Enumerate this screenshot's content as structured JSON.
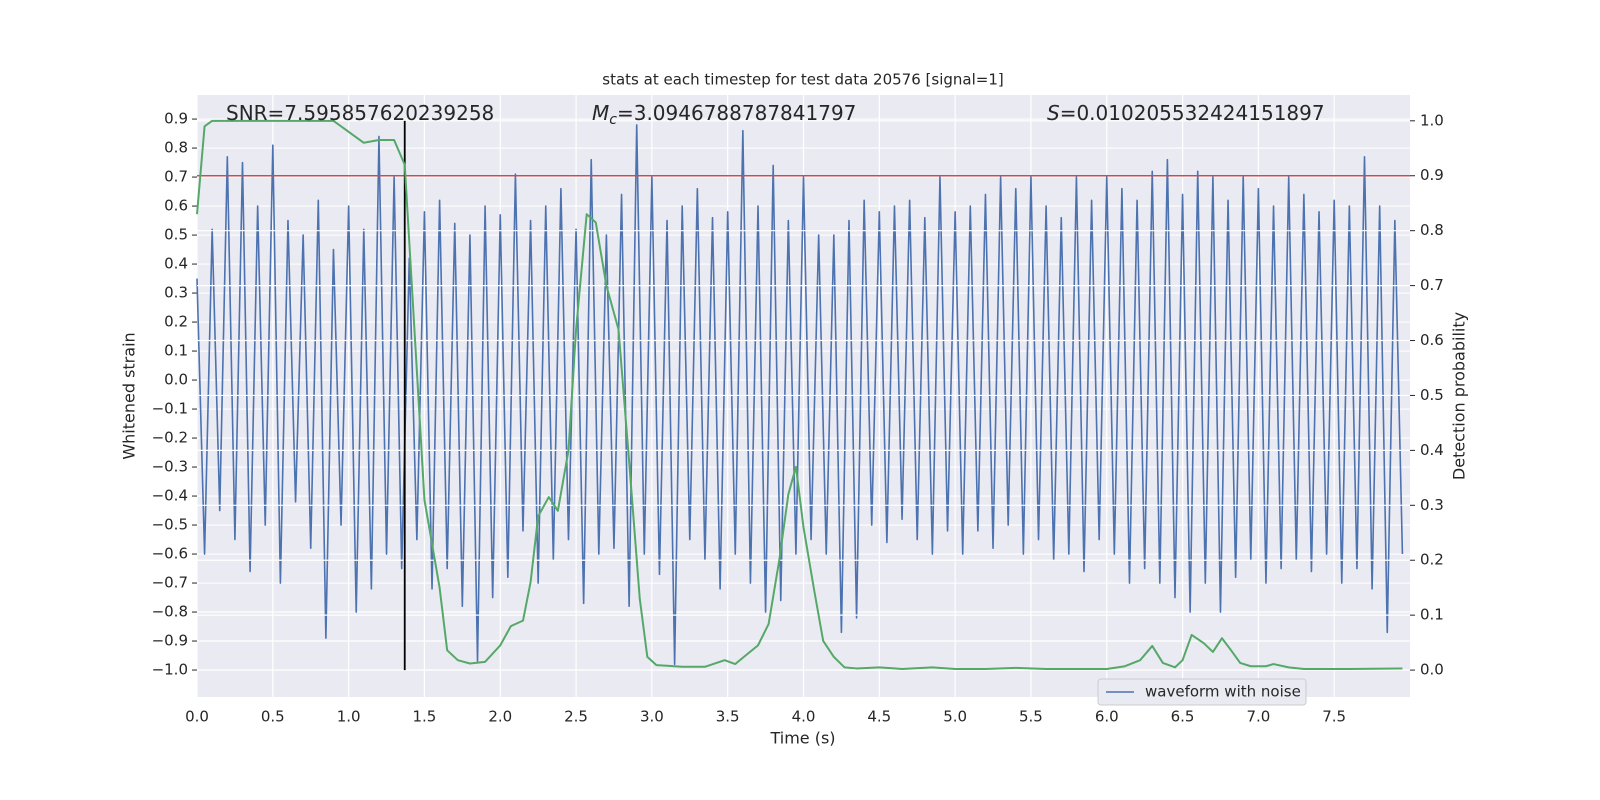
{
  "chart_data": {
    "type": "line",
    "title": "stats at each timestep for test data 20576 [signal=1]",
    "xlabel": "Time (s)",
    "ylabel": "Whitened strain",
    "y2label": "Detection probability",
    "annotations": [
      {
        "text": "SNR=7.595857620239258"
      },
      {
        "symbol": "M",
        "subscript": "c",
        "text": "=3.0946788787841797"
      },
      {
        "symbol": "S",
        "text": "=0.010205532424151897"
      }
    ],
    "xlim": [
      0,
      8.0
    ],
    "ylim": [
      -1.093,
      0.983
    ],
    "y2lim": [
      -0.049,
      1.047
    ],
    "xticks": [
      {
        "value": 0,
        "label": "0.0"
      },
      {
        "value": 0.5,
        "label": "0.5"
      },
      {
        "value": 1,
        "label": "1.0"
      },
      {
        "value": 1.5,
        "label": "1.5"
      },
      {
        "value": 2,
        "label": "2.0"
      },
      {
        "value": 2.5,
        "label": "2.5"
      },
      {
        "value": 3,
        "label": "3.0"
      },
      {
        "value": 3.5,
        "label": "3.5"
      },
      {
        "value": 4,
        "label": "4.0"
      },
      {
        "value": 4.5,
        "label": "4.5"
      },
      {
        "value": 5,
        "label": "5.0"
      },
      {
        "value": 5.5,
        "label": "5.5"
      },
      {
        "value": 6,
        "label": "6.0"
      },
      {
        "value": 6.5,
        "label": "6.5"
      },
      {
        "value": 7,
        "label": "7.0"
      },
      {
        "value": 7.5,
        "label": "7.5"
      }
    ],
    "yticks": [
      {
        "value": 0.9,
        "label": "0.9"
      },
      {
        "value": 0.8,
        "label": "0.8"
      },
      {
        "value": 0.7,
        "label": "0.7"
      },
      {
        "value": 0.6,
        "label": "0.6"
      },
      {
        "value": 0.5,
        "label": "0.5"
      },
      {
        "value": 0.4,
        "label": "0.4"
      },
      {
        "value": 0.3,
        "label": "0.3"
      },
      {
        "value": 0.2,
        "label": "0.2"
      },
      {
        "value": 0.1,
        "label": "0.1"
      },
      {
        "value": 0,
        "label": "0.0"
      },
      {
        "value": -0.1,
        "label": "−0.1"
      },
      {
        "value": -0.2,
        "label": "−0.2"
      },
      {
        "value": -0.3,
        "label": "−0.3"
      },
      {
        "value": -0.4,
        "label": "−0.4"
      },
      {
        "value": -0.5,
        "label": "−0.5"
      },
      {
        "value": -0.6,
        "label": "−0.6"
      },
      {
        "value": -0.7,
        "label": "−0.7"
      },
      {
        "value": -0.8,
        "label": "−0.8"
      },
      {
        "value": -0.9,
        "label": "−0.9"
      },
      {
        "value": -1,
        "label": "−1.0"
      }
    ],
    "y2ticks": [
      {
        "value": 0,
        "label": "0.0"
      },
      {
        "value": 0.1,
        "label": "0.1"
      },
      {
        "value": 0.2,
        "label": "0.2"
      },
      {
        "value": 0.3,
        "label": "0.3"
      },
      {
        "value": 0.4,
        "label": "0.4"
      },
      {
        "value": 0.5,
        "label": "0.5"
      },
      {
        "value": 0.6,
        "label": "0.6"
      },
      {
        "value": 0.7,
        "label": "0.7"
      },
      {
        "value": 0.8,
        "label": "0.8"
      },
      {
        "value": 0.9,
        "label": "0.9"
      },
      {
        "value": 1,
        "label": "1.0"
      }
    ],
    "grid": true,
    "legend": "lower right",
    "threshold": 0.9,
    "threshold_color": "#c44e52",
    "marker_x": 1.37,
    "marker_color": "#000000",
    "series": [
      {
        "name": "waveform with noise",
        "color": "#4c72b0",
        "x": [
          0,
          0.05,
          0.1,
          0.15,
          0.2,
          0.25,
          0.3,
          0.35,
          0.4,
          0.45,
          0.5,
          0.55,
          0.6,
          0.65,
          0.7,
          0.75,
          0.8,
          0.85,
          0.9,
          0.95,
          1,
          1.05,
          1.1,
          1.15,
          1.2,
          1.25,
          1.3,
          1.35,
          1.4,
          1.45,
          1.5,
          1.55,
          1.6,
          1.65,
          1.7,
          1.75,
          1.8,
          1.85,
          1.9,
          1.95,
          2,
          2.05,
          2.1,
          2.15,
          2.2,
          2.25,
          2.3,
          2.35,
          2.4,
          2.45,
          2.5,
          2.55,
          2.6,
          2.65,
          2.7,
          2.75,
          2.8,
          2.85,
          2.9,
          2.95,
          3,
          3.05,
          3.1,
          3.15,
          3.2,
          3.25,
          3.3,
          3.35,
          3.4,
          3.45,
          3.5,
          3.55,
          3.6,
          3.65,
          3.7,
          3.75,
          3.8,
          3.85,
          3.9,
          3.95,
          4,
          4.05,
          4.1,
          4.15,
          4.2,
          4.25,
          4.3,
          4.35,
          4.4,
          4.45,
          4.5,
          4.55,
          4.6,
          4.65,
          4.7,
          4.75,
          4.8,
          4.85,
          4.9,
          4.95,
          5,
          5.05,
          5.1,
          5.15,
          5.2,
          5.25,
          5.3,
          5.35,
          5.4,
          5.45,
          5.5,
          5.55,
          5.6,
          5.65,
          5.7,
          5.75,
          5.8,
          5.85,
          5.9,
          5.95,
          6,
          6.05,
          6.1,
          6.15,
          6.2,
          6.25,
          6.3,
          6.35,
          6.4,
          6.45,
          6.5,
          6.55,
          6.6,
          6.65,
          6.7,
          6.75,
          6.8,
          6.85,
          6.9,
          6.95,
          7,
          7.05,
          7.1,
          7.15,
          7.2,
          7.25,
          7.3,
          7.35,
          7.4,
          7.45,
          7.5,
          7.55,
          7.6,
          7.65,
          7.7,
          7.75,
          7.8,
          7.85,
          7.9,
          7.95
        ],
        "values": [
          0.35,
          -0.6,
          0.52,
          -0.45,
          0.77,
          -0.55,
          0.75,
          -0.66,
          0.6,
          -0.5,
          0.81,
          -0.7,
          0.55,
          -0.42,
          0.5,
          -0.58,
          0.62,
          -0.89,
          0.45,
          -0.5,
          0.6,
          -0.8,
          0.52,
          -0.72,
          0.84,
          -0.6,
          0.7,
          -0.65,
          0.42,
          -0.55,
          0.58,
          -0.72,
          0.62,
          -0.65,
          0.54,
          -0.78,
          0.5,
          -0.97,
          0.6,
          -0.75,
          0.57,
          -0.68,
          0.71,
          -0.52,
          0.55,
          -0.7,
          0.6,
          -0.62,
          0.66,
          -0.55,
          0.52,
          -0.77,
          0.76,
          -0.6,
          0.5,
          -0.58,
          0.64,
          -0.78,
          0.88,
          -0.6,
          0.7,
          -0.67,
          0.55,
          -0.98,
          0.6,
          -0.55,
          0.66,
          -0.62,
          0.56,
          -0.72,
          0.58,
          -0.6,
          0.86,
          -0.7,
          0.6,
          -0.8,
          0.74,
          -0.76,
          0.55,
          -0.6,
          0.7,
          -0.55,
          0.5,
          -0.6,
          0.5,
          -0.87,
          0.55,
          -0.82,
          0.62,
          -0.5,
          0.58,
          -0.56,
          0.6,
          -0.48,
          0.62,
          -0.55,
          0.56,
          -0.6,
          0.7,
          -0.52,
          0.58,
          -0.6,
          0.6,
          -0.52,
          0.64,
          -0.58,
          0.7,
          -0.5,
          0.66,
          -0.6,
          0.7,
          -0.55,
          0.6,
          -0.62,
          0.56,
          -0.6,
          0.7,
          -0.66,
          0.62,
          -0.55,
          0.7,
          -0.6,
          0.66,
          -0.7,
          0.62,
          -0.65,
          0.72,
          -0.7,
          0.76,
          -0.75,
          0.64,
          -0.8,
          0.72,
          -0.7,
          0.7,
          -0.8,
          0.62,
          -0.68,
          0.7,
          -0.62,
          0.66,
          -0.7,
          0.6,
          -0.65,
          0.7,
          -0.62,
          0.64,
          -0.66,
          0.58,
          -0.6,
          0.62,
          -0.7,
          0.6,
          -0.65,
          0.77,
          -0.72,
          0.6,
          -0.87,
          0.55,
          -0.6
        ]
      },
      {
        "color": "#55a868",
        "axis": "y2",
        "x": [
          0,
          0.05,
          0.1,
          0.2,
          0.5,
          0.9,
          1.0,
          1.1,
          1.2,
          1.3,
          1.37,
          1.5,
          1.6,
          1.65,
          1.72,
          1.8,
          1.9,
          2.0,
          2.07,
          2.15,
          2.2,
          2.25,
          2.32,
          2.38,
          2.45,
          2.5,
          2.57,
          2.63,
          2.7,
          2.78,
          2.85,
          2.92,
          2.97,
          3.03,
          3.1,
          3.2,
          3.35,
          3.48,
          3.55,
          3.62,
          3.7,
          3.77,
          3.84,
          3.9,
          3.95,
          4.0,
          4.07,
          4.13,
          4.2,
          4.27,
          4.35,
          4.5,
          4.65,
          4.85,
          5.0,
          5.2,
          5.4,
          5.6,
          6.0,
          6.12,
          6.22,
          6.3,
          6.37,
          6.45,
          6.5,
          6.56,
          6.64,
          6.7,
          6.76,
          6.82,
          6.88,
          6.95,
          7.05,
          7.1,
          7.2,
          7.3,
          7.6,
          7.95
        ],
        "values": [
          0.83,
          0.99,
          1.0,
          1.0,
          1.0,
          1.0,
          0.98,
          0.96,
          0.965,
          0.965,
          0.92,
          0.31,
          0.15,
          0.036,
          0.018,
          0.012,
          0.015,
          0.045,
          0.08,
          0.09,
          0.16,
          0.28,
          0.315,
          0.29,
          0.4,
          0.62,
          0.83,
          0.815,
          0.7,
          0.62,
          0.38,
          0.13,
          0.024,
          0.009,
          0.008,
          0.006,
          0.006,
          0.018,
          0.011,
          0.027,
          0.045,
          0.084,
          0.2,
          0.32,
          0.37,
          0.26,
          0.146,
          0.053,
          0.024,
          0.005,
          0.003,
          0.005,
          0.002,
          0.005,
          0.002,
          0.002,
          0.004,
          0.002,
          0.002,
          0.007,
          0.018,
          0.044,
          0.013,
          0.005,
          0.018,
          0.064,
          0.049,
          0.033,
          0.058,
          0.036,
          0.013,
          0.007,
          0.007,
          0.011,
          0.005,
          0.002,
          0.002,
          0.003
        ]
      }
    ]
  }
}
